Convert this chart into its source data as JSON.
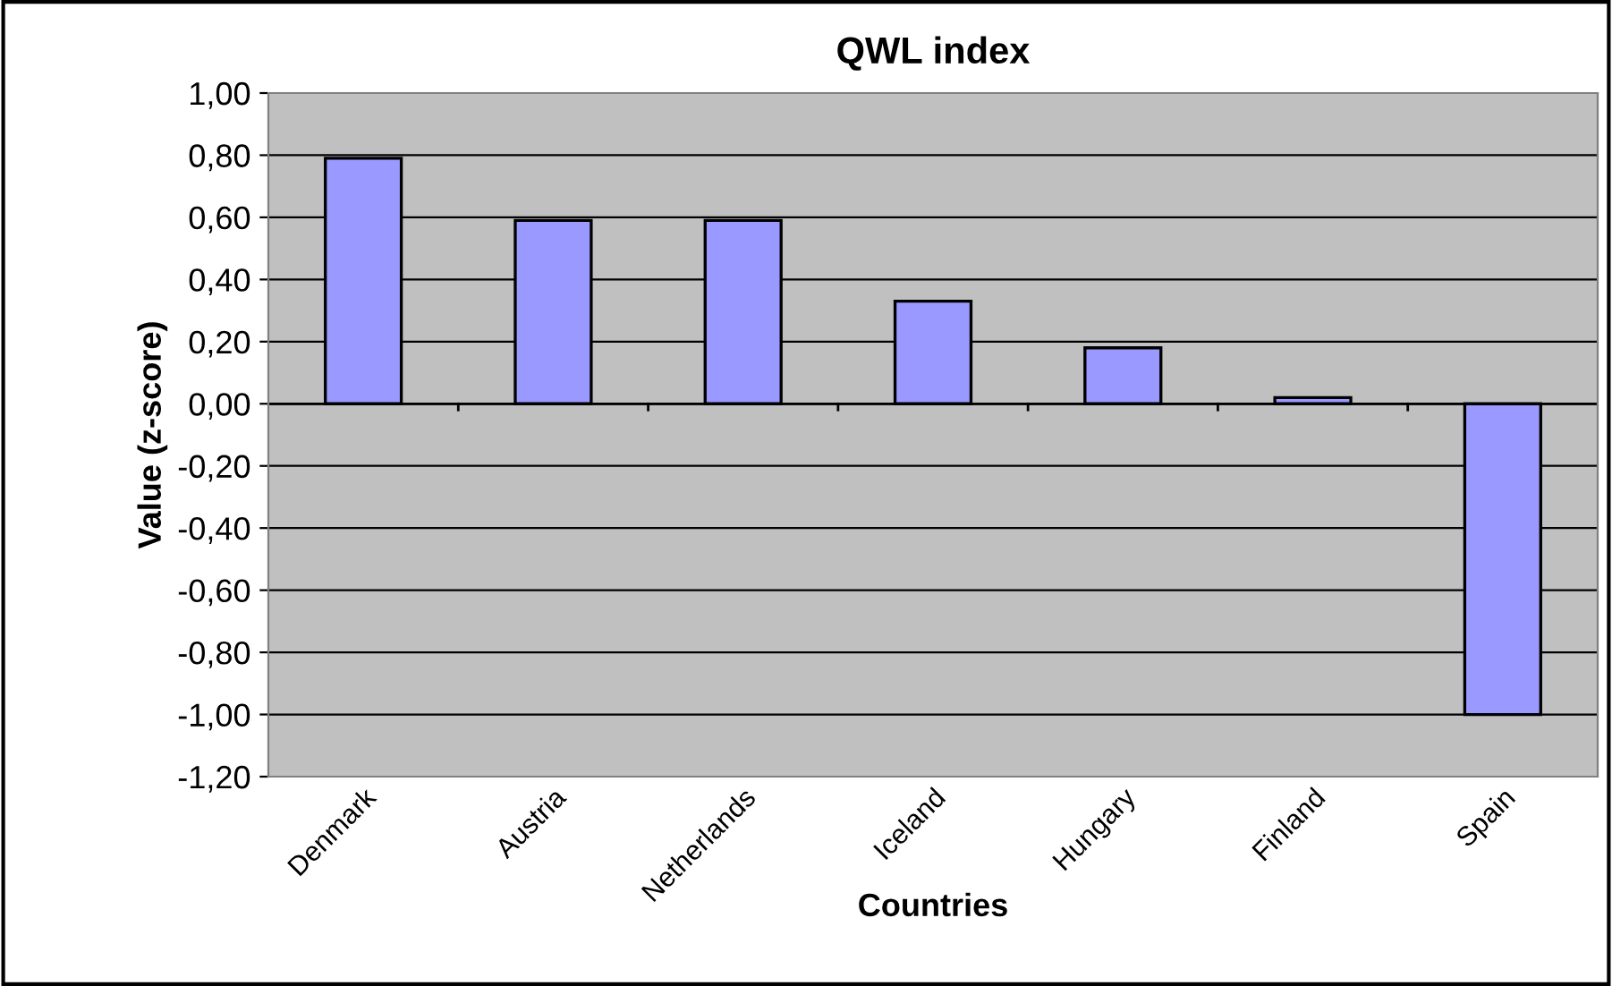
{
  "chart_data": {
    "type": "bar",
    "title": "QWL index",
    "xlabel": "Countries",
    "ylabel": "Value (z-score)",
    "categories": [
      "Denmark",
      "Austria",
      "Netherlands",
      "Iceland",
      "Hungary",
      "Finland",
      "Spain"
    ],
    "values": [
      0.79,
      0.59,
      0.59,
      0.33,
      0.18,
      0.02,
      -1.0
    ],
    "color": "#9999ff",
    "ylim": [
      -1.2,
      1.0
    ],
    "yticks": [
      {
        "value": -1.2,
        "label": "-1,20"
      },
      {
        "value": -1.0,
        "label": "-1,00"
      },
      {
        "value": -0.8,
        "label": "-0,80"
      },
      {
        "value": -0.6,
        "label": "-0,60"
      },
      {
        "value": -0.4,
        "label": "-0,40"
      },
      {
        "value": -0.2,
        "label": "-0,20"
      },
      {
        "value": 0,
        "label": "0,00"
      },
      {
        "value": 0.2,
        "label": "0,20"
      },
      {
        "value": 0.4,
        "label": "0,40"
      },
      {
        "value": 0.6,
        "label": "0,60"
      },
      {
        "value": 0.8,
        "label": "0,80"
      },
      {
        "value": 1.0,
        "label": "1,00"
      }
    ],
    "grid": "y",
    "legend": false
  }
}
